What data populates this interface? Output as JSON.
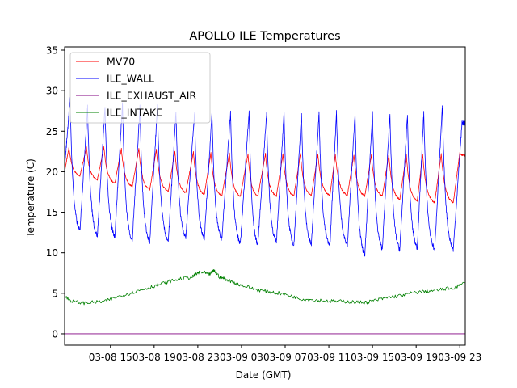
{
  "chart_data": {
    "type": "line",
    "title": "APOLLO ILE Temperatures",
    "xlabel": "Date (GMT)",
    "ylabel": "Temperature (C)",
    "x_unit": "hours",
    "xlim": [
      10.8,
      47.5
    ],
    "ylim": [
      -1.4,
      35.4
    ],
    "grid": false,
    "legend_position": "upper-left",
    "x_ticks": [
      {
        "value": 15,
        "label": "03-08 15"
      },
      {
        "value": 19,
        "label": "03-08 19"
      },
      {
        "value": 23,
        "label": "03-08 23"
      },
      {
        "value": 27,
        "label": "03-09 03"
      },
      {
        "value": 31,
        "label": "03-09 07"
      },
      {
        "value": 35,
        "label": "03-09 11"
      },
      {
        "value": 39,
        "label": "03-09 15"
      },
      {
        "value": 43,
        "label": "03-09 19"
      },
      {
        "value": 47,
        "label": "03-09 23"
      }
    ],
    "y_ticks": [
      0,
      5,
      10,
      15,
      20,
      25,
      30,
      35
    ],
    "series": [
      {
        "name": "MV70",
        "color": "#ff0000",
        "kind": "sawtooth",
        "peaks": [
          [
            11.2,
            23.0
          ],
          [
            12.8,
            23.0
          ],
          [
            14.4,
            23.0
          ],
          [
            16.0,
            22.8
          ],
          [
            17.6,
            22.8
          ],
          [
            19.2,
            22.7
          ],
          [
            20.9,
            22.5
          ],
          [
            22.6,
            22.4
          ],
          [
            24.2,
            22.3
          ],
          [
            25.9,
            22.3
          ],
          [
            27.6,
            22.2
          ],
          [
            29.2,
            22.2
          ],
          [
            30.8,
            22.2
          ],
          [
            32.4,
            22.2
          ],
          [
            34.0,
            22.1
          ],
          [
            35.6,
            22.1
          ],
          [
            37.3,
            22.1
          ],
          [
            38.9,
            22.1
          ],
          [
            40.5,
            22.1
          ],
          [
            42.1,
            22.1
          ],
          [
            43.6,
            22.1
          ],
          [
            45.3,
            22.2
          ],
          [
            47.0,
            22.3
          ]
        ],
        "troughs": [
          [
            12.2,
            19.5
          ],
          [
            13.8,
            19.0
          ],
          [
            15.4,
            18.6
          ],
          [
            17.0,
            18.2
          ],
          [
            18.6,
            17.8
          ],
          [
            20.3,
            17.6
          ],
          [
            21.9,
            17.4
          ],
          [
            23.6,
            17.2
          ],
          [
            25.2,
            17.0
          ],
          [
            26.9,
            17.0
          ],
          [
            28.5,
            17.0
          ],
          [
            30.2,
            17.0
          ],
          [
            31.8,
            17.0
          ],
          [
            33.4,
            17.1
          ],
          [
            35.1,
            17.1
          ],
          [
            36.7,
            17.1
          ],
          [
            38.3,
            17.0
          ],
          [
            39.9,
            17.0
          ],
          [
            41.5,
            16.6
          ],
          [
            43.1,
            16.4
          ],
          [
            44.7,
            16.2
          ],
          [
            46.4,
            16.2
          ]
        ],
        "start": [
          10.8,
          20.0
        ],
        "end": [
          47.5,
          22.0
        ]
      },
      {
        "name": "ILE_WALL",
        "color": "#0000ff",
        "kind": "sawtooth",
        "peaks": [
          [
            11.3,
            29.0
          ],
          [
            12.9,
            28.0
          ],
          [
            14.5,
            28.0
          ],
          [
            16.1,
            28.5
          ],
          [
            17.7,
            28.0
          ],
          [
            19.3,
            28.0
          ],
          [
            21.0,
            27.3
          ],
          [
            22.7,
            27.2
          ],
          [
            24.3,
            27.2
          ],
          [
            26.0,
            27.3
          ],
          [
            27.7,
            27.5
          ],
          [
            29.3,
            27.2
          ],
          [
            30.9,
            27.2
          ],
          [
            32.5,
            27.2
          ],
          [
            34.1,
            27.2
          ],
          [
            35.7,
            27.3
          ],
          [
            37.4,
            27.3
          ],
          [
            39.0,
            27.4
          ],
          [
            40.6,
            27.2
          ],
          [
            42.2,
            27.0
          ],
          [
            43.7,
            27.3
          ],
          [
            45.4,
            28.0
          ],
          [
            47.2,
            26.0
          ]
        ],
        "troughs": [
          [
            12.2,
            12.7
          ],
          [
            13.8,
            12.1
          ],
          [
            15.4,
            12.0
          ],
          [
            17.0,
            11.5
          ],
          [
            18.6,
            11.3
          ],
          [
            20.3,
            11.4
          ],
          [
            21.9,
            11.9
          ],
          [
            23.6,
            11.8
          ],
          [
            25.2,
            11.7
          ],
          [
            26.9,
            11.1
          ],
          [
            28.5,
            11.0
          ],
          [
            30.2,
            11.3
          ],
          [
            31.8,
            11.0
          ],
          [
            33.4,
            11.0
          ],
          [
            35.1,
            10.8
          ],
          [
            36.7,
            10.9
          ],
          [
            38.3,
            9.7
          ],
          [
            39.9,
            10.5
          ],
          [
            41.5,
            10.4
          ],
          [
            43.1,
            10.6
          ],
          [
            44.7,
            10.4
          ],
          [
            46.4,
            10.4
          ]
        ],
        "start": [
          10.8,
          20.5
        ],
        "end": [
          47.5,
          26.0
        ]
      },
      {
        "name": "ILE_EXHAUST_AIR",
        "color": "#800080",
        "kind": "line",
        "points": [
          [
            10.8,
            0.0
          ],
          [
            47.5,
            0.0
          ]
        ]
      },
      {
        "name": "ILE_INTAKE",
        "color": "#008000",
        "kind": "line",
        "points": [
          [
            10.8,
            4.6
          ],
          [
            11.5,
            4.0
          ],
          [
            12.5,
            3.8
          ],
          [
            13.5,
            3.9
          ],
          [
            14.5,
            4.0
          ],
          [
            15.5,
            4.5
          ],
          [
            16.5,
            4.9
          ],
          [
            17.5,
            5.3
          ],
          [
            18.5,
            5.7
          ],
          [
            19.5,
            6.1
          ],
          [
            20.5,
            6.5
          ],
          [
            21.5,
            6.8
          ],
          [
            22.5,
            7.0
          ],
          [
            23.0,
            7.5
          ],
          [
            23.5,
            7.6
          ],
          [
            24.0,
            7.3
          ],
          [
            24.5,
            7.8
          ],
          [
            25.0,
            7.0
          ],
          [
            25.5,
            6.8
          ],
          [
            26.5,
            6.2
          ],
          [
            27.5,
            5.8
          ],
          [
            28.5,
            5.4
          ],
          [
            29.5,
            5.2
          ],
          [
            30.5,
            5.0
          ],
          [
            31.5,
            4.7
          ],
          [
            32.5,
            4.3
          ],
          [
            33.5,
            4.2
          ],
          [
            34.5,
            4.1
          ],
          [
            35.5,
            4.0
          ],
          [
            36.5,
            4.0
          ],
          [
            37.5,
            3.9
          ],
          [
            38.5,
            3.9
          ],
          [
            39.5,
            4.2
          ],
          [
            40.5,
            4.5
          ],
          [
            41.5,
            4.7
          ],
          [
            42.5,
            5.0
          ],
          [
            43.5,
            5.2
          ],
          [
            44.5,
            5.3
          ],
          [
            45.5,
            5.5
          ],
          [
            46.5,
            5.7
          ],
          [
            47.5,
            6.3
          ]
        ]
      }
    ]
  }
}
